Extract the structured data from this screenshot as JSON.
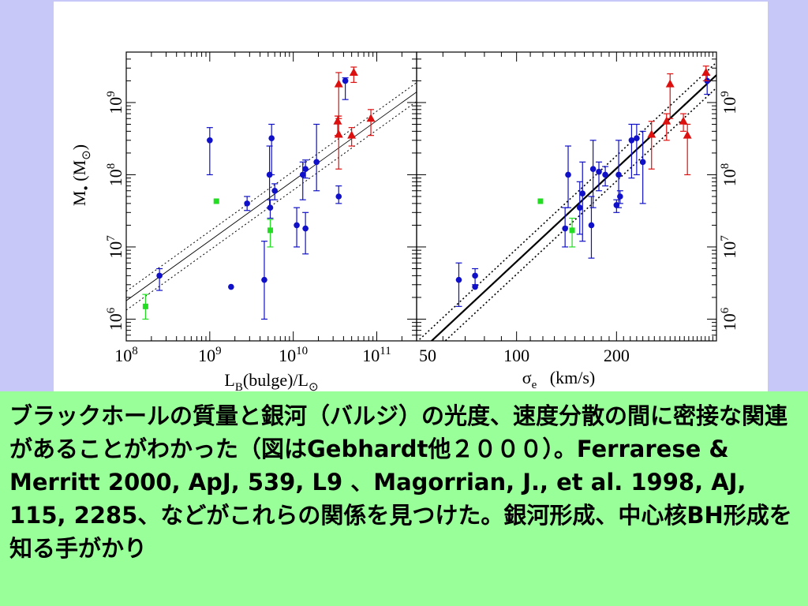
{
  "caption": {
    "text": "ブラックホールの質量と銀河（バルジ）の光度、速度分散の間に密接な関連があることがわかった（図はGebhardt他２０００）。Ferrarese & Merritt 2000, ApJ, 539, L9 、Magorrian, J., et al. 1998, AJ, 115, 2285、などがこれらの関係を見つけた。銀河形成、中心核BH形成を知る手がかり"
  },
  "colors": {
    "slide_background": "#c8c8f8",
    "caption_background": "#99ff99",
    "blue_points": "#1010c8",
    "red_points": "#dd1010",
    "green_points": "#22dd22"
  },
  "chart_data": [
    {
      "type": "scatter",
      "title": "",
      "xlabel": "L_B(bulge)/L_⊙",
      "ylabel": "M• (M⊙)",
      "x_scale": "log",
      "y_scale": "log",
      "xlim": [
        100000000.0,
        300000000000.0
      ],
      "ylim": [
        500000.0,
        5000000000.0
      ],
      "x_tick_labels": [
        "10^8",
        "10^9",
        "10^10",
        "10^11"
      ],
      "y_tick_labels": [
        "10^6",
        "10^7",
        "10^8",
        "10^9"
      ],
      "series": [
        {
          "marker": "circle",
          "color": "blue",
          "points": [
            {
              "x": 250000000.0,
              "y": 4000000.0,
              "ylo": 2500000.0,
              "yhi": 5000000.0
            },
            {
              "x": 1000000000.0,
              "y": 300000000.0,
              "ylo": 100000000.0,
              "yhi": 450000000.0
            },
            {
              "x": 1800000000.0,
              "y": 2800000.0
            },
            {
              "x": 2800000000.0,
              "y": 40000000.0,
              "ylo": 32000000.0,
              "yhi": 50000000.0
            },
            {
              "x": 4500000000.0,
              "y": 3500000.0,
              "ylo": 1000000.0,
              "yhi": 12000000.0
            },
            {
              "x": 5200000000.0,
              "y": 100000000.0,
              "ylo": 35000000.0,
              "yhi": 250000000.0
            },
            {
              "x": 5500000000.0,
              "y": 320000000.0,
              "ylo": 100000000.0,
              "yhi": 500000000.0
            },
            {
              "x": 5300000000.0,
              "y": 35000000.0,
              "ylo": 25000000.0,
              "yhi": 45000000.0
            },
            {
              "x": 6000000000.0,
              "y": 60000000.0,
              "ylo": 45000000.0,
              "yhi": 75000000.0
            },
            {
              "x": 11000000000.0,
              "y": 20000000.0,
              "ylo": 10000000.0,
              "yhi": 35000000.0
            },
            {
              "x": 13000000000.0,
              "y": 100000000.0,
              "ylo": 45000000.0,
              "yhi": 150000000.0
            },
            {
              "x": 14000000000.0,
              "y": 18000000.0,
              "ylo": 8000000.0,
              "yhi": 30000000.0
            },
            {
              "x": 14000000000.0,
              "y": 120000000.0,
              "ylo": 90000000.0,
              "yhi": 160000000.0
            },
            {
              "x": 19000000000.0,
              "y": 150000000.0,
              "ylo": 60000000.0,
              "yhi": 500000000.0
            },
            {
              "x": 35000000000.0,
              "y": 50000000.0,
              "ylo": 40000000.0,
              "yhi": 70000000.0
            },
            {
              "x": 42000000000.0,
              "y": 2000000000.0,
              "ylo": 1100000000.0,
              "yhi": 2200000000.0
            }
          ]
        },
        {
          "marker": "triangle",
          "color": "red",
          "points": [
            {
              "x": 35000000000.0,
              "y": 1800000000.0,
              "ylo": 600000000.0,
              "yhi": 2600000000.0
            },
            {
              "x": 34000000000.0,
              "y": 550000000.0,
              "ylo": 350000000.0,
              "yhi": 650000000.0
            },
            {
              "x": 35000000000.0,
              "y": 360000000.0,
              "ylo": 120000000.0,
              "yhi": 650000000.0
            },
            {
              "x": 50000000000.0,
              "y": 350000000.0,
              "ylo": 250000000.0,
              "yhi": 450000000.0
            },
            {
              "x": 53000000000.0,
              "y": 2600000000.0,
              "ylo": 1900000000.0,
              "yhi": 3100000000.0
            },
            {
              "x": 85000000000.0,
              "y": 600000000.0,
              "ylo": 350000000.0,
              "yhi": 800000000.0
            }
          ]
        },
        {
          "marker": "square",
          "color": "green",
          "points": [
            {
              "x": 170000000.0,
              "y": 1500000.0,
              "ylo": 1000000.0,
              "yhi": 2200000.0
            },
            {
              "x": 1200000000.0,
              "y": 43000000.0
            },
            {
              "x": 5300000000.0,
              "y": 17000000.0,
              "ylo": 10000000.0,
              "yhi": 24000000.0
            }
          ]
        }
      ],
      "fit": {
        "y_at_xmin": 1800000.0,
        "y_at_xmax": 1400000000.0,
        "band_factor": 1.35,
        "style": "thin"
      }
    },
    {
      "type": "scatter",
      "title": "",
      "xlabel": "σ_e (km/s)",
      "ylabel": "",
      "x_scale": "log",
      "y_scale": "log",
      "xlim": [
        50,
        400
      ],
      "ylim": [
        500000.0,
        5000000000.0
      ],
      "x_tick_labels": [
        "50",
        "100",
        "200"
      ],
      "y_tick_labels": [
        "10^6",
        "10^7",
        "10^8",
        "10^9"
      ],
      "series": [
        {
          "marker": "circle",
          "color": "blue",
          "points": [
            {
              "x": 67,
              "y": 3500000.0,
              "ylo": 1500000.0,
              "yhi": 6000000.0
            },
            {
              "x": 75,
              "y": 4000000.0,
              "ylo": 3000000.0,
              "yhi": 5000000.0
            },
            {
              "x": 75,
              "y": 2800000.0
            },
            {
              "x": 140,
              "y": 18000000.0,
              "ylo": 10000000.0,
              "yhi": 35000000.0
            },
            {
              "x": 143,
              "y": 100000000.0,
              "ylo": 35000000.0,
              "yhi": 250000000.0
            },
            {
              "x": 155,
              "y": 35000000.0,
              "ylo": 15000000.0,
              "yhi": 80000000.0
            },
            {
              "x": 158,
              "y": 55000000.0,
              "ylo": 12000000.0,
              "yhi": 150000000.0
            },
            {
              "x": 168,
              "y": 20000000.0,
              "ylo": 7000000.0,
              "yhi": 50000000.0
            },
            {
              "x": 170,
              "y": 120000000.0,
              "ylo": 35000000.0,
              "yhi": 300000000.0
            },
            {
              "x": 177,
              "y": 110000000.0,
              "ylo": 60000000.0,
              "yhi": 150000000.0
            },
            {
              "x": 185,
              "y": 100000000.0,
              "ylo": 70000000.0,
              "yhi": 130000000.0
            },
            {
              "x": 200,
              "y": 38000000.0,
              "ylo": 30000000.0,
              "yhi": 45000000.0
            },
            {
              "x": 203,
              "y": 100000000.0,
              "ylo": 35000000.0,
              "yhi": 300000000.0
            },
            {
              "x": 205,
              "y": 50000000.0,
              "ylo": 40000000.0,
              "yhi": 60000000.0
            },
            {
              "x": 222,
              "y": 300000000.0,
              "ylo": 90000000.0,
              "yhi": 500000000.0
            },
            {
              "x": 230,
              "y": 320000000.0,
              "ylo": 100000000.0,
              "yhi": 500000000.0
            },
            {
              "x": 240,
              "y": 150000000.0,
              "ylo": 40000000.0,
              "yhi": 400000000.0
            },
            {
              "x": 375,
              "y": 2000000000.0,
              "ylo": 1300000000.0,
              "yhi": 2400000000.0
            }
          ]
        },
        {
          "marker": "triangle",
          "color": "red",
          "points": [
            {
              "x": 255,
              "y": 360000000.0,
              "ylo": 120000000.0,
              "yhi": 550000000.0
            },
            {
              "x": 283,
              "y": 550000000.0,
              "ylo": 300000000.0,
              "yhi": 700000000.0
            },
            {
              "x": 290,
              "y": 1800000000.0,
              "ylo": 600000000.0,
              "yhi": 2500000000.0
            },
            {
              "x": 318,
              "y": 550000000.0,
              "ylo": 400000000.0,
              "yhi": 700000000.0
            },
            {
              "x": 327,
              "y": 350000000.0,
              "ylo": 100000000.0,
              "yhi": 500000000.0
            },
            {
              "x": 372,
              "y": 2600000000.0,
              "ylo": 2000000000.0,
              "yhi": 3200000000.0
            }
          ]
        },
        {
          "marker": "square",
          "color": "green",
          "points": [
            {
              "x": 118,
              "y": 43000000.0
            },
            {
              "x": 147,
              "y": 17000000.0,
              "ylo": 10000000.0,
              "yhi": 25000000.0
            }
          ]
        }
      ],
      "fit": {
        "y_at_xmin": 320000.0,
        "y_at_xmax": 2400000000.0,
        "band_factor": 1.5,
        "style": "thick"
      }
    }
  ]
}
